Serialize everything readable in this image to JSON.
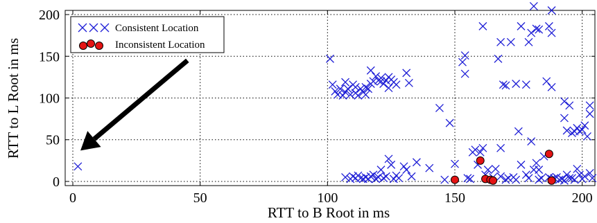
{
  "chart_data": {
    "type": "scatter",
    "xlabel": "RTT to B Root in ms",
    "ylabel": "RTT to L Root in ms",
    "xlim": [
      -3,
      205
    ],
    "ylim": [
      -5,
      205
    ],
    "xticks": [
      0,
      50,
      100,
      150,
      200
    ],
    "yticks": [
      0,
      50,
      100,
      150,
      200
    ],
    "grid": true,
    "legend_position": "top-left",
    "series": [
      {
        "name": "Consistent Location",
        "marker": "x",
        "color": "#1f1fd6",
        "points": [
          [
            2,
            18
          ],
          [
            101,
            147
          ],
          [
            102,
            116
          ],
          [
            103,
            108
          ],
          [
            104,
            104
          ],
          [
            105,
            111
          ],
          [
            106,
            103
          ],
          [
            107,
            119
          ],
          [
            107,
            107
          ],
          [
            108,
            111
          ],
          [
            109,
            104
          ],
          [
            110,
            116
          ],
          [
            111,
            106
          ],
          [
            111,
            113
          ],
          [
            112,
            103
          ],
          [
            113,
            111
          ],
          [
            114,
            107
          ],
          [
            115,
            113
          ],
          [
            115,
            104
          ],
          [
            116,
            111
          ],
          [
            117,
            133
          ],
          [
            117,
            117
          ],
          [
            118,
            120
          ],
          [
            119,
            126
          ],
          [
            120,
            121
          ],
          [
            121,
            120
          ],
          [
            121,
            124
          ],
          [
            122,
            117
          ],
          [
            123,
            121
          ],
          [
            124,
            125
          ],
          [
            124,
            112
          ],
          [
            125,
            122
          ],
          [
            126,
            119
          ],
          [
            127,
            116
          ],
          [
            131,
            130
          ],
          [
            132,
            118
          ],
          [
            144,
            88
          ],
          [
            148,
            70
          ],
          [
            153,
            143
          ],
          [
            154,
            151
          ],
          [
            154,
            129
          ],
          [
            161,
            186
          ],
          [
            167,
            147
          ],
          [
            168,
            167
          ],
          [
            169,
            116
          ],
          [
            170,
            115
          ],
          [
            172,
            167
          ],
          [
            174,
            117
          ],
          [
            176,
            186
          ],
          [
            178,
            116
          ],
          [
            179,
            167
          ],
          [
            180,
            178
          ],
          [
            181,
            210
          ],
          [
            182,
            183
          ],
          [
            183,
            182
          ],
          [
            186,
            120
          ],
          [
            187,
            186
          ],
          [
            188,
            178
          ],
          [
            188,
            205
          ],
          [
            188,
            113
          ],
          [
            193,
            96
          ],
          [
            193,
            76
          ],
          [
            194,
            61
          ],
          [
            195,
            91
          ],
          [
            196,
            58
          ],
          [
            197,
            60
          ],
          [
            198,
            64
          ],
          [
            199,
            60
          ],
          [
            200,
            62
          ],
          [
            201,
            67
          ],
          [
            202,
            54
          ],
          [
            203,
            81
          ],
          [
            203,
            91
          ],
          [
            107,
            5
          ],
          [
            109,
            3
          ],
          [
            110,
            6
          ],
          [
            111,
            4
          ],
          [
            112,
            7
          ],
          [
            113,
            4
          ],
          [
            114,
            3
          ],
          [
            115,
            5
          ],
          [
            116,
            3
          ],
          [
            117,
            6
          ],
          [
            118,
            8
          ],
          [
            119,
            3
          ],
          [
            120,
            5
          ],
          [
            121,
            14
          ],
          [
            122,
            4
          ],
          [
            123,
            6
          ],
          [
            124,
            27
          ],
          [
            125,
            20
          ],
          [
            126,
            3
          ],
          [
            127,
            7
          ],
          [
            128,
            4
          ],
          [
            130,
            18
          ],
          [
            131,
            14
          ],
          [
            133,
            6
          ],
          [
            135,
            23
          ],
          [
            140,
            16
          ],
          [
            146,
            2
          ],
          [
            150,
            21
          ],
          [
            155,
            4
          ],
          [
            156,
            3
          ],
          [
            157,
            35
          ],
          [
            158,
            38
          ],
          [
            159,
            20
          ],
          [
            160,
            35
          ],
          [
            161,
            40
          ],
          [
            162,
            8
          ],
          [
            163,
            14
          ],
          [
            165,
            5
          ],
          [
            166,
            15
          ],
          [
            168,
            40
          ],
          [
            168,
            6
          ],
          [
            170,
            2
          ],
          [
            171,
            4
          ],
          [
            173,
            5
          ],
          [
            174,
            2
          ],
          [
            175,
            60
          ],
          [
            176,
            20
          ],
          [
            178,
            8
          ],
          [
            179,
            4
          ],
          [
            180,
            48
          ],
          [
            181,
            14
          ],
          [
            182,
            22
          ],
          [
            183,
            14
          ],
          [
            183,
            2
          ],
          [
            184,
            4
          ],
          [
            185,
            30
          ],
          [
            187,
            5
          ],
          [
            188,
            3
          ],
          [
            189,
            4
          ],
          [
            190,
            5
          ],
          [
            191,
            2
          ],
          [
            192,
            3
          ],
          [
            193,
            1
          ],
          [
            194,
            8
          ],
          [
            195,
            4
          ],
          [
            196,
            4
          ],
          [
            197,
            2
          ],
          [
            198,
            15
          ],
          [
            199,
            8
          ],
          [
            200,
            3
          ],
          [
            201,
            6
          ],
          [
            203,
            10
          ],
          [
            204,
            4
          ]
        ]
      },
      {
        "name": "Inconsistent Location",
        "marker": "o",
        "color": "#e41313",
        "points": [
          [
            150,
            2
          ],
          [
            160,
            25
          ],
          [
            162,
            3
          ],
          [
            164,
            2
          ],
          [
            165,
            1
          ],
          [
            187,
            33
          ],
          [
            188,
            1
          ]
        ]
      }
    ],
    "annotation": {
      "type": "arrow",
      "from": [
        45,
        145
      ],
      "to": [
        3,
        37
      ]
    }
  }
}
